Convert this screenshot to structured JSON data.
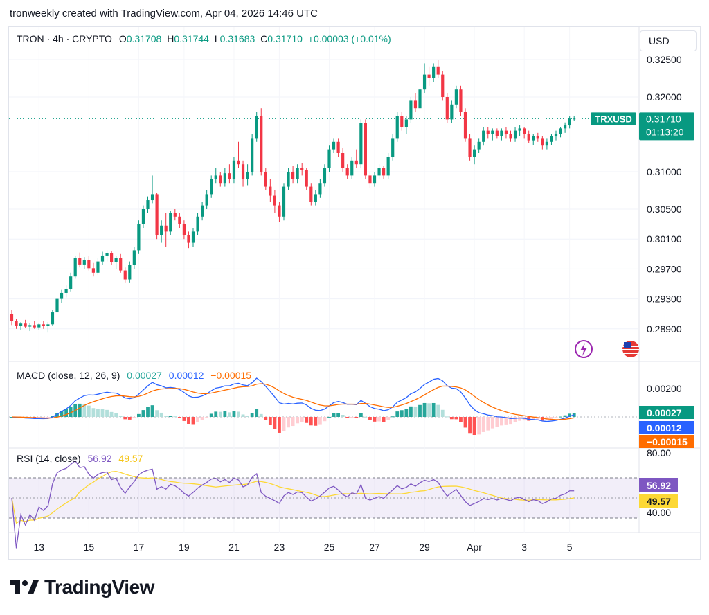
{
  "header": {
    "text": "tronweekly created with TradingView.com, Apr 04, 2026 14:46 UTC"
  },
  "legend": {
    "symbol": "TRON · 4h · CRYPTO",
    "o_label": "O",
    "o": "0.31708",
    "h_label": "H",
    "h": "0.31744",
    "l_label": "L",
    "l": "0.31683",
    "c_label": "C",
    "c": "0.31710",
    "change": "+0.00003 (+0.01%)"
  },
  "currency_button": "USD",
  "price_tag": {
    "symbol": "TRXUSD",
    "price": "0.31710",
    "countdown": "01:13:20"
  },
  "macd_legend": {
    "title": "MACD (close, 12, 26, 9)",
    "hist": "0.00027",
    "macd": "0.00012",
    "signal": "−0.00015"
  },
  "rsi_legend": {
    "title": "RSI (14, close)",
    "rsi": "56.92",
    "ma": "49.57"
  },
  "macd_tags": {
    "hist": "0.00027",
    "macd": "0.00012",
    "signal": "−0.00015"
  },
  "rsi_tags": {
    "rsi": "56.92",
    "ma": "49.57"
  },
  "branding": "TradingView",
  "colors": {
    "up": "#089981",
    "down": "#f23645",
    "macd": "#2962ff",
    "signal": "#ff6d00",
    "rsi": "#7e57c2",
    "rsi_ma": "#fdd835"
  },
  "chart_data": {
    "type": "candlestick",
    "title": "TRON · 4h · CRYPTO",
    "price_axis_ticks": [
      "0.32500",
      "0.32000",
      "0.31000",
      "0.30500",
      "0.30100",
      "0.29700",
      "0.29300",
      "0.28900"
    ],
    "x_tick_labels": [
      "13",
      "15",
      "17",
      "19",
      "21",
      "23",
      "25",
      "27",
      "29",
      "Apr",
      "3",
      "5"
    ],
    "ohlc": [
      [
        0.291,
        0.2915,
        0.2895,
        0.29
      ],
      [
        0.29,
        0.2903,
        0.289,
        0.2894
      ],
      [
        0.2894,
        0.2899,
        0.2888,
        0.2897
      ],
      [
        0.2897,
        0.2902,
        0.2891,
        0.2893
      ],
      [
        0.2893,
        0.2898,
        0.2887,
        0.2895
      ],
      [
        0.2895,
        0.29,
        0.289,
        0.2892
      ],
      [
        0.2892,
        0.2897,
        0.2888,
        0.2896
      ],
      [
        0.2896,
        0.29,
        0.289,
        0.2894
      ],
      [
        0.2894,
        0.2899,
        0.2885,
        0.2896
      ],
      [
        0.2896,
        0.2915,
        0.2894,
        0.2912
      ],
      [
        0.2912,
        0.2935,
        0.2908,
        0.293
      ],
      [
        0.293,
        0.2942,
        0.2925,
        0.2938
      ],
      [
        0.2938,
        0.2948,
        0.2932,
        0.2943
      ],
      [
        0.2943,
        0.2965,
        0.294,
        0.296
      ],
      [
        0.296,
        0.2988,
        0.2957,
        0.2985
      ],
      [
        0.2985,
        0.2992,
        0.2972,
        0.2976
      ],
      [
        0.2976,
        0.2986,
        0.297,
        0.2982
      ],
      [
        0.2982,
        0.2987,
        0.2968,
        0.2971
      ],
      [
        0.2971,
        0.2978,
        0.296,
        0.2965
      ],
      [
        0.2965,
        0.2985,
        0.2962,
        0.298
      ],
      [
        0.298,
        0.2993,
        0.2975,
        0.2988
      ],
      [
        0.2988,
        0.2995,
        0.298,
        0.2991
      ],
      [
        0.2991,
        0.2994,
        0.2975,
        0.2979
      ],
      [
        0.2979,
        0.2988,
        0.297,
        0.2985
      ],
      [
        0.2985,
        0.299,
        0.2965,
        0.2968
      ],
      [
        0.2968,
        0.2972,
        0.2952,
        0.2956
      ],
      [
        0.2956,
        0.298,
        0.2952,
        0.2975
      ],
      [
        0.2975,
        0.3,
        0.297,
        0.2995
      ],
      [
        0.2995,
        0.3035,
        0.299,
        0.303
      ],
      [
        0.303,
        0.3055,
        0.3025,
        0.305
      ],
      [
        0.305,
        0.3067,
        0.3045,
        0.3062
      ],
      [
        0.3062,
        0.3095,
        0.3058,
        0.307
      ],
      [
        0.307,
        0.3072,
        0.301,
        0.3015
      ],
      [
        0.3015,
        0.3035,
        0.3005,
        0.3028
      ],
      [
        0.3028,
        0.3045,
        0.3,
        0.302
      ],
      [
        0.302,
        0.3048,
        0.3015,
        0.3045
      ],
      [
        0.3045,
        0.305,
        0.3035,
        0.304
      ],
      [
        0.304,
        0.3045,
        0.3025,
        0.303
      ],
      [
        0.303,
        0.3035,
        0.301,
        0.3015
      ],
      [
        0.3015,
        0.302,
        0.2998,
        0.3005
      ],
      [
        0.3005,
        0.3025,
        0.3,
        0.302
      ],
      [
        0.302,
        0.3045,
        0.3015,
        0.304
      ],
      [
        0.304,
        0.306,
        0.3035,
        0.3055
      ],
      [
        0.3055,
        0.3075,
        0.305,
        0.307
      ],
      [
        0.307,
        0.3095,
        0.3065,
        0.309
      ],
      [
        0.309,
        0.3105,
        0.3085,
        0.3095
      ],
      [
        0.3095,
        0.31,
        0.308,
        0.3085
      ],
      [
        0.3085,
        0.3105,
        0.308,
        0.3098
      ],
      [
        0.3098,
        0.311,
        0.3085,
        0.309
      ],
      [
        0.309,
        0.312,
        0.3085,
        0.3115
      ],
      [
        0.3115,
        0.314,
        0.3105,
        0.311
      ],
      [
        0.311,
        0.3115,
        0.308,
        0.309
      ],
      [
        0.309,
        0.311,
        0.3082,
        0.31
      ],
      [
        0.31,
        0.315,
        0.3095,
        0.3145
      ],
      [
        0.3145,
        0.318,
        0.314,
        0.3175
      ],
      [
        0.3175,
        0.3185,
        0.3095,
        0.31
      ],
      [
        0.31,
        0.3105,
        0.3075,
        0.308
      ],
      [
        0.308,
        0.309,
        0.306,
        0.3068
      ],
      [
        0.3068,
        0.3075,
        0.3045,
        0.3055
      ],
      [
        0.3055,
        0.306,
        0.3033,
        0.304
      ],
      [
        0.304,
        0.3085,
        0.3035,
        0.308
      ],
      [
        0.308,
        0.3105,
        0.3075,
        0.31
      ],
      [
        0.31,
        0.3108,
        0.3085,
        0.309
      ],
      [
        0.309,
        0.311,
        0.3085,
        0.3105
      ],
      [
        0.3105,
        0.3112,
        0.3095,
        0.3102
      ],
      [
        0.3102,
        0.3105,
        0.3075,
        0.308
      ],
      [
        0.308,
        0.3085,
        0.3055,
        0.306
      ],
      [
        0.306,
        0.3075,
        0.3055,
        0.307
      ],
      [
        0.307,
        0.309,
        0.3065,
        0.3085
      ],
      [
        0.3085,
        0.311,
        0.308,
        0.3105
      ],
      [
        0.3105,
        0.3135,
        0.31,
        0.313
      ],
      [
        0.313,
        0.3145,
        0.3125,
        0.314
      ],
      [
        0.314,
        0.3145,
        0.312,
        0.3125
      ],
      [
        0.3125,
        0.3132,
        0.31,
        0.3105
      ],
      [
        0.3105,
        0.311,
        0.309,
        0.3095
      ],
      [
        0.3095,
        0.312,
        0.309,
        0.3115
      ],
      [
        0.3115,
        0.313,
        0.3105,
        0.311
      ],
      [
        0.311,
        0.317,
        0.3105,
        0.3165
      ],
      [
        0.3165,
        0.317,
        0.309,
        0.3095
      ],
      [
        0.3095,
        0.31,
        0.3078,
        0.3085
      ],
      [
        0.3085,
        0.31,
        0.308,
        0.3095
      ],
      [
        0.3095,
        0.311,
        0.309,
        0.3105
      ],
      [
        0.3105,
        0.3108,
        0.309,
        0.3095
      ],
      [
        0.3095,
        0.3125,
        0.309,
        0.312
      ],
      [
        0.312,
        0.315,
        0.3115,
        0.3145
      ],
      [
        0.3145,
        0.318,
        0.314,
        0.3175
      ],
      [
        0.3175,
        0.318,
        0.3155,
        0.316
      ],
      [
        0.316,
        0.3175,
        0.315,
        0.317
      ],
      [
        0.317,
        0.32,
        0.3165,
        0.3195
      ],
      [
        0.3195,
        0.3205,
        0.318,
        0.3185
      ],
      [
        0.3185,
        0.3215,
        0.318,
        0.321
      ],
      [
        0.321,
        0.3245,
        0.3205,
        0.323
      ],
      [
        0.323,
        0.324,
        0.3215,
        0.3225
      ],
      [
        0.3225,
        0.3245,
        0.322,
        0.324
      ],
      [
        0.324,
        0.325,
        0.3225,
        0.323
      ],
      [
        0.323,
        0.3235,
        0.3195,
        0.32
      ],
      [
        0.32,
        0.3205,
        0.3165,
        0.317
      ],
      [
        0.317,
        0.3195,
        0.3165,
        0.319
      ],
      [
        0.319,
        0.3215,
        0.3185,
        0.321
      ],
      [
        0.321,
        0.3215,
        0.3175,
        0.318
      ],
      [
        0.318,
        0.3185,
        0.314,
        0.3145
      ],
      [
        0.3145,
        0.315,
        0.3115,
        0.312
      ],
      [
        0.312,
        0.3135,
        0.311,
        0.313
      ],
      [
        0.313,
        0.3145,
        0.3125,
        0.314
      ],
      [
        0.314,
        0.316,
        0.3135,
        0.3155
      ],
      [
        0.3155,
        0.316,
        0.3145,
        0.315
      ],
      [
        0.315,
        0.3158,
        0.3142,
        0.3155
      ],
      [
        0.3155,
        0.3158,
        0.3145,
        0.3148
      ],
      [
        0.3148,
        0.3158,
        0.3142,
        0.3155
      ],
      [
        0.3155,
        0.316,
        0.3145,
        0.315
      ],
      [
        0.315,
        0.3155,
        0.314,
        0.3145
      ],
      [
        0.3145,
        0.316,
        0.314,
        0.3155
      ],
      [
        0.3155,
        0.3162,
        0.3148,
        0.3158
      ],
      [
        0.3158,
        0.316,
        0.3145,
        0.315
      ],
      [
        0.315,
        0.3155,
        0.3138,
        0.3142
      ],
      [
        0.3142,
        0.315,
        0.3136,
        0.3148
      ],
      [
        0.3148,
        0.3152,
        0.314,
        0.3145
      ],
      [
        0.3145,
        0.3148,
        0.313,
        0.3135
      ],
      [
        0.3135,
        0.3145,
        0.313,
        0.314
      ],
      [
        0.314,
        0.315,
        0.3136,
        0.3148
      ],
      [
        0.3148,
        0.3155,
        0.3142,
        0.315
      ],
      [
        0.315,
        0.316,
        0.3146,
        0.3158
      ],
      [
        0.3158,
        0.3166,
        0.3152,
        0.3162
      ],
      [
        0.3162,
        0.3174,
        0.3158,
        0.3171
      ],
      [
        0.31708,
        0.31744,
        0.31683,
        0.3171
      ]
    ],
    "macd": {
      "fast": 12,
      "slow": 26,
      "signal": 9,
      "macd_last": 0.00012,
      "signal_last": -0.00015,
      "hist_last": 0.00027,
      "axis_ticks": [
        "0.00200"
      ]
    },
    "rsi": {
      "length": 14,
      "rsi_last": 56.92,
      "ma_last": 49.57,
      "axis_ticks": [
        "80.00",
        "40.00"
      ],
      "upper_band": 70,
      "lower_band": 30
    }
  }
}
